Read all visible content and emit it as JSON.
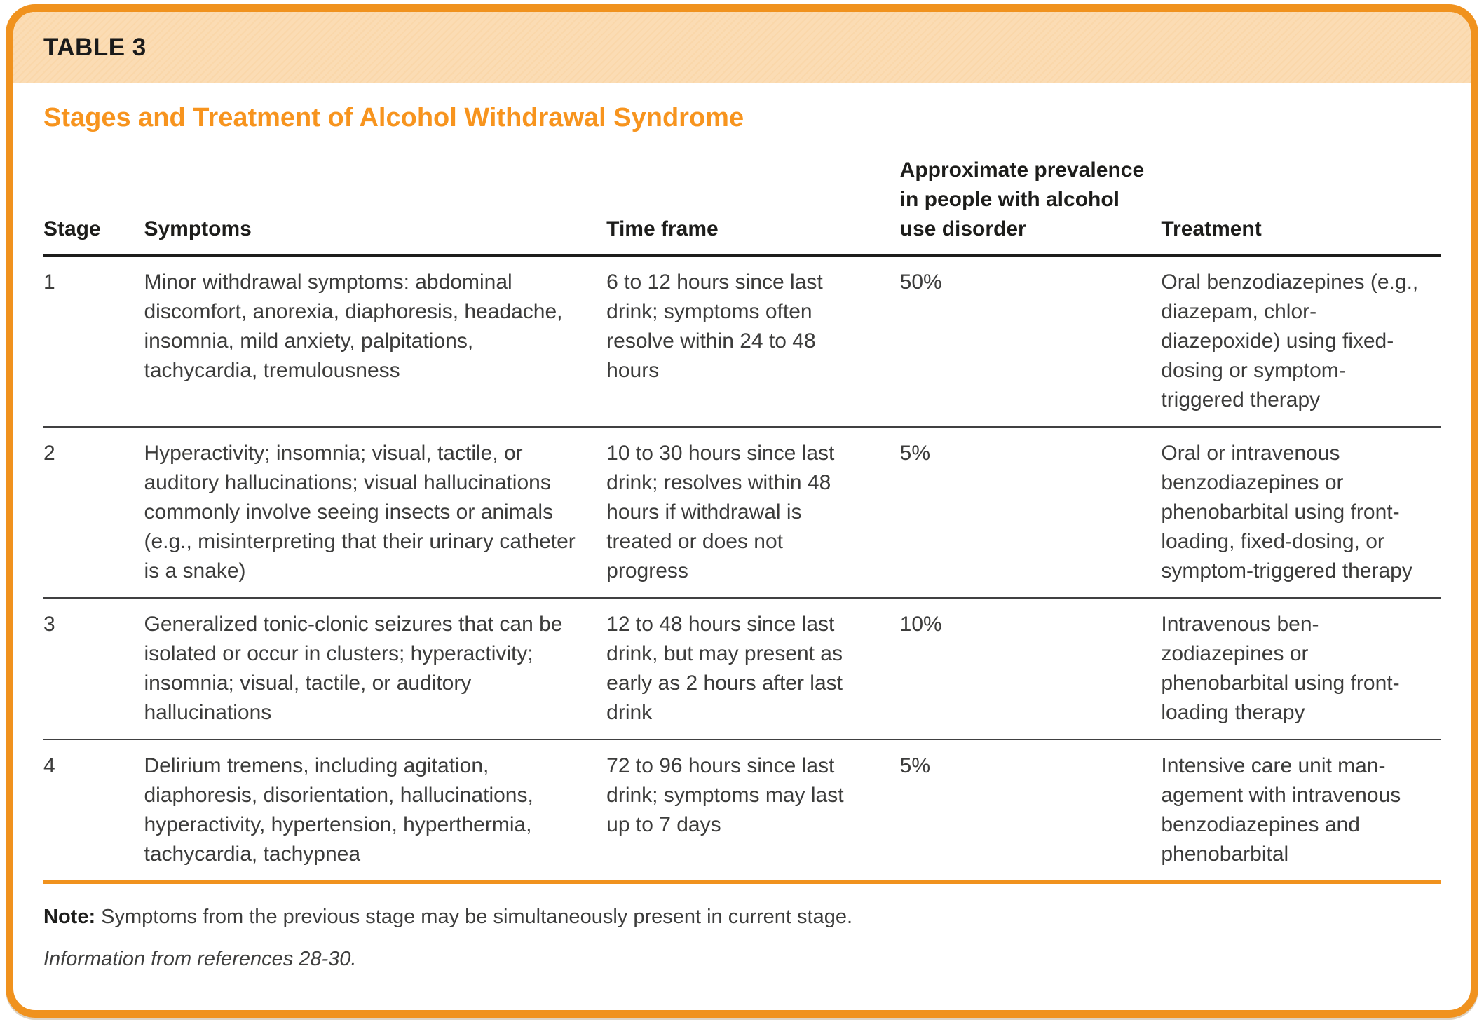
{
  "header": {
    "table_label": "TABLE 3",
    "title": "Stages and Treatment of Alcohol Withdrawal Syndrome"
  },
  "table": {
    "columns": {
      "stage": "Stage",
      "symptoms": "Symptoms",
      "time_frame": "Time frame",
      "prevalence": "Approximate preva­lence in people with alcohol use disorder",
      "treatment": "Treatment"
    },
    "rows": [
      {
        "stage": "1",
        "symptoms": "Minor withdrawal symptoms: abdominal discomfort, anorexia, dia­phoresis, headache, insomnia, mild anxiety, palpitations, tachycardia, tremulousness",
        "time_frame": "6 to 12 hours since last drink; symptoms often resolve within 24 to 48 hours",
        "prevalence": "50%",
        "treatment": "Oral benzodiazepines (e.g., diazepam, chlor­diazepoxide) using fixed-dosing or symptom-triggered therapy"
      },
      {
        "stage": "2",
        "symptoms": "Hyperactivity; insomnia; visual, tac­tile, or auditory hallucinations; visual hallucinations commonly involve seeing insects or animals (e.g., misin­terpreting that their urinary catheter is a snake)",
        "time_frame": "10 to 30 hours since last drink; resolves within 48 hours if withdrawal is treated or does not progress",
        "prevalence": "5%",
        "treatment": "Oral or intravenous benzodiazepines or phenobarbital using front-loading, fixed-dosing, or symptom-triggered therapy"
      },
      {
        "stage": "3",
        "symptoms": "Generalized tonic-clonic seizures that can be isolated or occur in clus­ters; hyperactivity; insomnia; visual, tactile, or auditory hallucinations",
        "time_frame": "12 to 48 hours since last drink, but may present as early as 2 hours after last drink",
        "prevalence": "10%",
        "treatment": "Intravenous ben­zodiazepines or phenobarbital using front-loading therapy"
      },
      {
        "stage": "4",
        "symptoms": "Delirium tremens, including agitation, diaphoresis, disorientation, halluci­nations, hyperactivity, hypertension, hyperthermia, tachycardia, tachypnea",
        "time_frame": "72 to 96 hours since last drink; symptoms may last up to 7 days",
        "prevalence": "5%",
        "treatment": "Intensive care unit man­agement with intravenous benzodiazepines and phenobarbital"
      }
    ]
  },
  "footer": {
    "note_label": "Note:",
    "note_text": " Symptoms from the previous stage may be simultaneously present in current stage.",
    "source": "Information from references 28-30."
  },
  "colors": {
    "border_orange": "#F0921E",
    "band_peach": "#FBDCB4",
    "title_orange": "#F7941E",
    "rule_dark": "#1D1D1B",
    "divider_gray": "#404041",
    "body_text": "#3C3C3B"
  }
}
